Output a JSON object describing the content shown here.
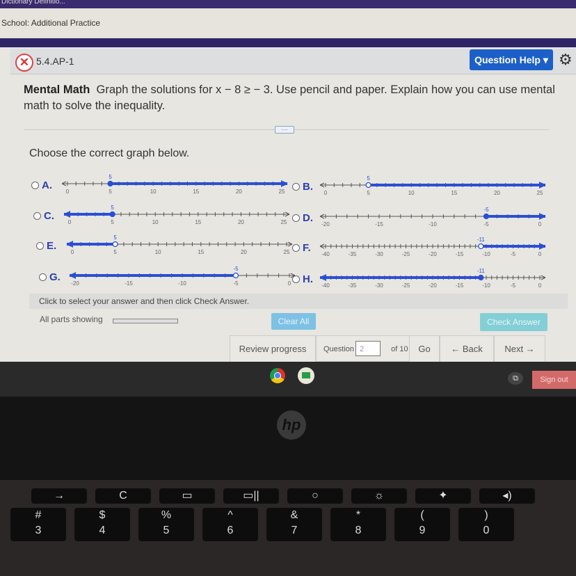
{
  "browser": {
    "tab_title": "Dictionary Definitio...",
    "breadcrumb": "School: Additional Practice"
  },
  "question": {
    "id": "5.4.AP-1",
    "status_icon": "x-circle-icon",
    "help_label": "Question Help",
    "bold_label": "Mental Math",
    "text": "Graph the solutions for x − 8 ≥ − 3. Use pencil and paper. Explain how you can use mental math to solve the inequality.",
    "prompt": "Choose the correct graph below.",
    "dots": "....",
    "options": [
      {
        "label": "A.",
        "min": 0,
        "max": 25,
        "point": 5,
        "closed": true,
        "direction": "right",
        "tick_labels": [
          "0",
          "5",
          "10",
          "15",
          "20",
          "25"
        ]
      },
      {
        "label": "B.",
        "min": 0,
        "max": 25,
        "point": 5,
        "closed": false,
        "direction": "right",
        "tick_labels": [
          "0",
          "5",
          "10",
          "15",
          "20",
          "25"
        ]
      },
      {
        "label": "C.",
        "min": 0,
        "max": 25,
        "point": 5,
        "closed": true,
        "direction": "left",
        "tick_labels": [
          "0",
          "5",
          "10",
          "15",
          "20",
          "25"
        ]
      },
      {
        "label": "D.",
        "min": -20,
        "max": 0,
        "point": -5,
        "closed": true,
        "direction": "right",
        "tick_labels": [
          "-20",
          "-15",
          "-10",
          "-5",
          "0"
        ]
      },
      {
        "label": "E.",
        "min": 0,
        "max": 25,
        "point": 5,
        "closed": false,
        "direction": "left",
        "tick_labels": [
          "0",
          "5",
          "10",
          "15",
          "20",
          "25"
        ]
      },
      {
        "label": "F.",
        "min": -40,
        "max": 0,
        "point": -11,
        "closed": false,
        "direction": "right",
        "tick_labels": [
          "-40",
          "-35",
          "-30",
          "-25",
          "-20",
          "-15",
          "-10",
          "-5",
          "0"
        ]
      },
      {
        "label": "G.",
        "min": -20,
        "max": 0,
        "point": -5,
        "closed": false,
        "direction": "left",
        "tick_labels": [
          "-20",
          "-15",
          "-10",
          "-5",
          "0"
        ]
      },
      {
        "label": "H.",
        "min": -40,
        "max": 0,
        "point": -11,
        "closed": true,
        "direction": "left",
        "tick_labels": [
          "-40",
          "-35",
          "-30",
          "-25",
          "-20",
          "-15",
          "-10",
          "-5",
          "0"
        ]
      }
    ],
    "instruction": "Click to select your answer and then click Check Answer.",
    "parts_label": "All parts showing",
    "clear_all": "Clear All",
    "check_answer": "Check Answer"
  },
  "nav": {
    "review": "Review progress",
    "question_label": "Question",
    "question_value": "2",
    "of_label": "of 10",
    "go": "Go",
    "back": "← Back",
    "next": "Next →"
  },
  "taskbar": {
    "sign_out": "Sign out"
  },
  "logo": "hp",
  "keys": [
    "→",
    "C",
    "▭",
    "▭||",
    "○",
    "☼",
    "✦",
    "◂)",
    "#\n3",
    "$\n4",
    "%\n5",
    "^\n6",
    "&\n7",
    "*\n8",
    "(\n9",
    ")\n0"
  ],
  "colors": {
    "accent": "#1d5fc9",
    "graph_blue": "#2a4fd6",
    "purple": "#2f2468"
  }
}
